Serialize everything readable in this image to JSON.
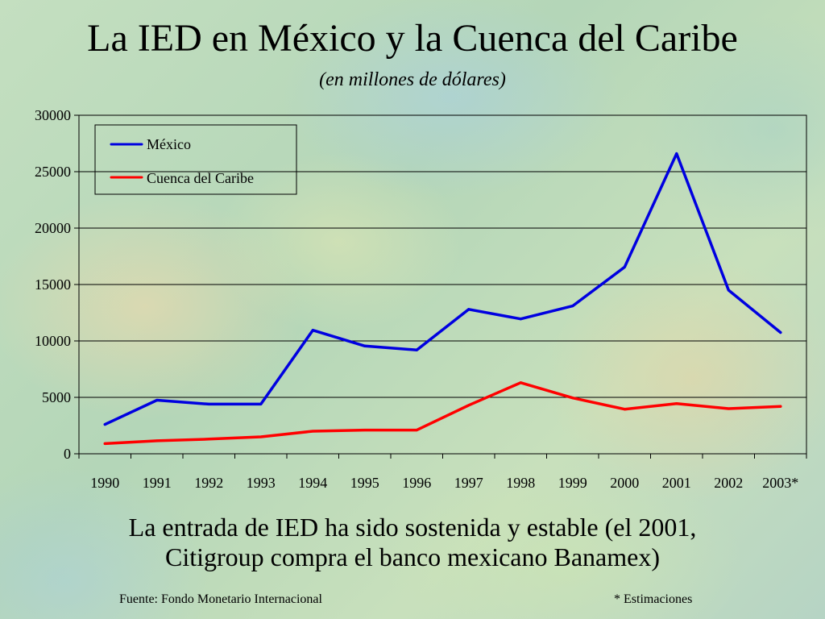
{
  "title": "La IED en México y la Cuenca del Caribe",
  "subtitle": "(en millones de dólares)",
  "caption_line1": "La entrada de IED ha sido sostenida y estable (el 2001,",
  "caption_line2": "Citigroup compra el banco mexicano Banamex)",
  "footer_source": "Fuente: Fondo Monetario Internacional",
  "footer_note": "* Estimaciones",
  "chart_data": {
    "type": "line",
    "categories": [
      "1990",
      "1991",
      "1992",
      "1993",
      "1994",
      "1995",
      "1996",
      "1997",
      "1998",
      "1999",
      "2000",
      "2001",
      "2002",
      "2003*"
    ],
    "series": [
      {
        "name": "México",
        "color": "#0000e0",
        "values": [
          2600,
          4750,
          4400,
          4400,
          10950,
          9550,
          9200,
          12800,
          11950,
          13100,
          16550,
          26600,
          14500,
          10750
        ]
      },
      {
        "name": "Cuenca del Caribe",
        "color": "#ff0000",
        "values": [
          900,
          1150,
          1300,
          1500,
          2000,
          2100,
          2100,
          4300,
          6300,
          4950,
          3950,
          4450,
          4000,
          4200
        ]
      }
    ],
    "ylim": [
      0,
      30000
    ],
    "yticks": [
      0,
      5000,
      10000,
      15000,
      20000,
      25000,
      30000
    ],
    "grid": true,
    "legend": "top-left"
  }
}
